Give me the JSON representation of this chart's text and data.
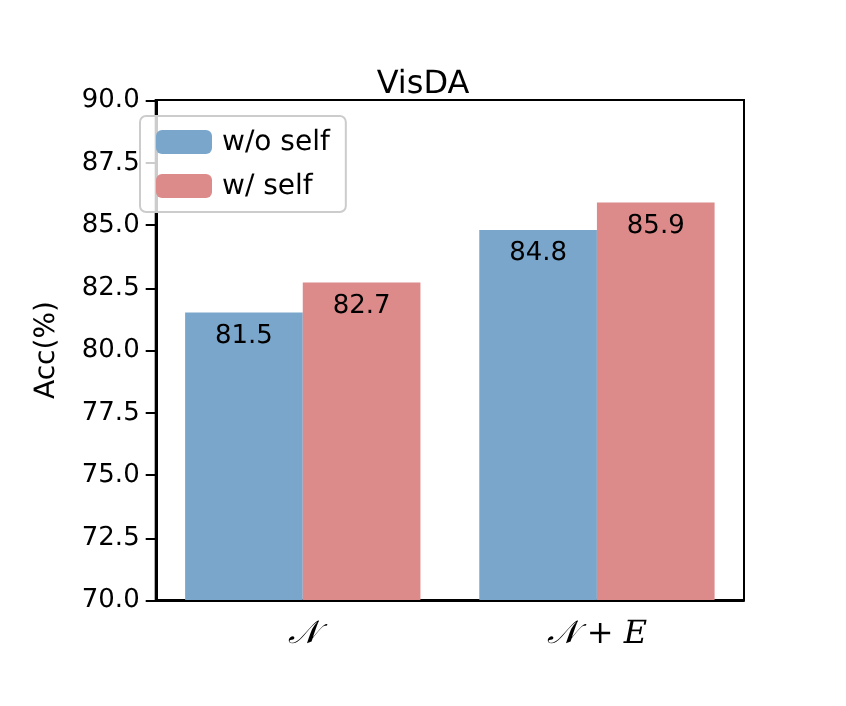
{
  "chart_data": {
    "type": "bar",
    "title": "VisDA",
    "ylabel": "Acc(%)",
    "categories": [
      "𝒩",
      "𝒩 + E"
    ],
    "series": [
      {
        "name": "w/o self",
        "color": "#7ba6cc",
        "values": [
          81.5,
          84.8
        ]
      },
      {
        "name": "w/ self",
        "color": "#dc8a8a",
        "values": [
          82.7,
          85.9
        ]
      }
    ],
    "ylim": [
      70,
      90
    ],
    "yticks": [
      {
        "value": 70,
        "label": "70.0"
      },
      72.5,
      {
        "value": 75,
        "label": "75.0"
      },
      77.5,
      {
        "value": 80,
        "label": "80.0"
      },
      82.5,
      {
        "value": 85,
        "label": "85.0"
      },
      87.5,
      {
        "value": 90,
        "label": "90.0"
      }
    ],
    "data_labels": true,
    "legend": "top left",
    "grid": false
  }
}
